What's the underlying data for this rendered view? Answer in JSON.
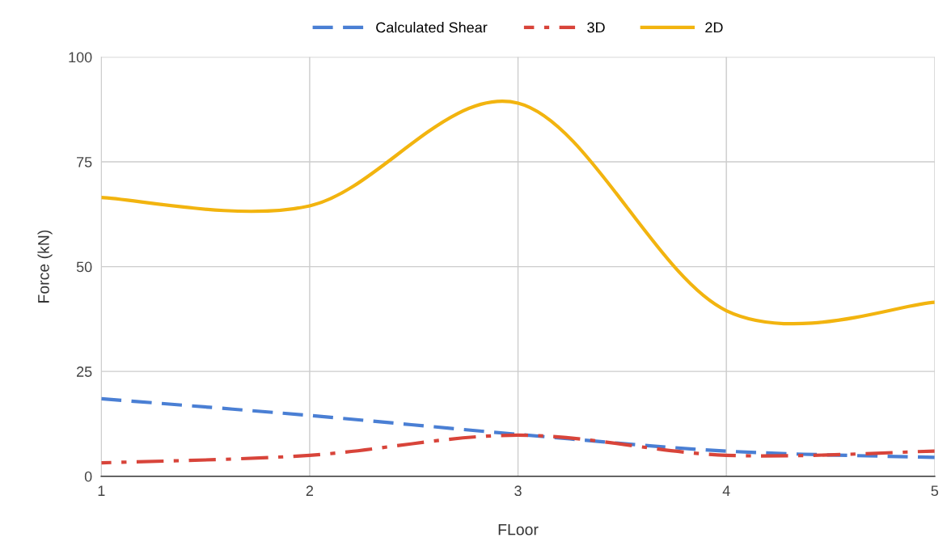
{
  "chart_data": {
    "type": "line",
    "xlabel": "FLoor",
    "ylabel": "Force (kN)",
    "x": [
      1,
      2,
      3,
      4,
      5
    ],
    "series": [
      {
        "name": "Calculated Shear",
        "color": "#4a7fd4",
        "line_style": "dashed",
        "values": [
          18.5,
          14.5,
          10,
          6,
          4.5
        ]
      },
      {
        "name": "3D",
        "color": "#d8443a",
        "line_style": "dashdot",
        "values": [
          3.2,
          5,
          9.8,
          5,
          6
        ]
      },
      {
        "name": "2D",
        "color": "#f2b40f",
        "line_style": "solid",
        "values": [
          66.5,
          64.5,
          89,
          39.5,
          41.5
        ]
      }
    ],
    "xlim": [
      1,
      5
    ],
    "xticks": [
      1,
      2,
      3,
      4,
      5
    ],
    "ylim": [
      0,
      100
    ],
    "yticks": [
      0,
      25,
      50,
      75,
      100
    ],
    "grid": true,
    "legend": "top",
    "marker": "none"
  }
}
